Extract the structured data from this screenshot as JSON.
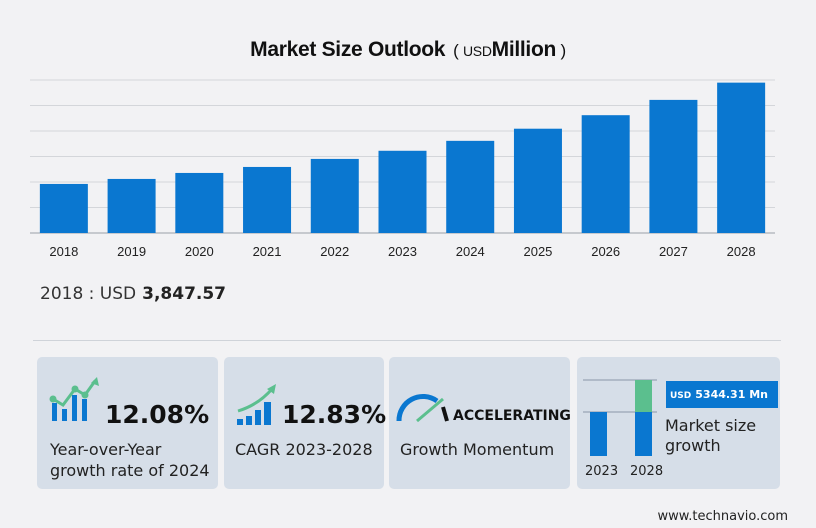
{
  "chart_data": {
    "type": "bar",
    "title": "Market Size Outlook",
    "unit_prefix": "USD",
    "unit": "Million",
    "categories": [
      "2018",
      "2019",
      "2020",
      "2021",
      "2022",
      "2023",
      "2024",
      "2025",
      "2026",
      "2027",
      "2028"
    ],
    "values": [
      3847.57,
      4240,
      4710,
      5180,
      5810,
      6449,
      7228,
      8180,
      9240,
      10440,
      11793
    ],
    "ylim": [
      0,
      12000
    ],
    "grid": true,
    "bar_color": "#0a77d0"
  },
  "base": {
    "label": "2018 : USD",
    "value": "3,847.57"
  },
  "cards": [
    {
      "value": "12.08%",
      "label1": "Year-over-Year",
      "label2": "growth rate of 2024"
    },
    {
      "value": "12.83%",
      "label1": "CAGR  2023-2028"
    },
    {
      "value": "ACCELERATING",
      "label1": "Growth Momentum"
    },
    {
      "years": [
        "2023",
        "2028"
      ],
      "badge_prefix": "USD",
      "badge_value": "5344.31 Mn",
      "label1": "Market size",
      "label2": "growth"
    }
  ],
  "colors": {
    "blue": "#0a77d0",
    "green": "#5bbf8e"
  },
  "footer": "www.technavio.com"
}
